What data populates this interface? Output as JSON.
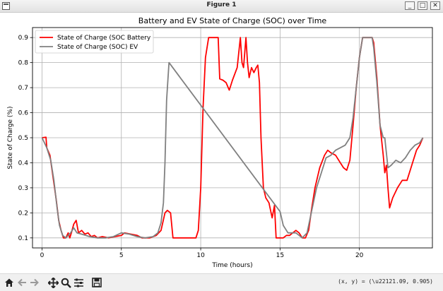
{
  "window": {
    "title": "Figure 1",
    "controls": {
      "minimize": "_",
      "maximize": "□",
      "close": "✕"
    }
  },
  "toolbar": {
    "icons": [
      "home-icon",
      "back-arrow-icon",
      "forward-arrow-icon",
      "pan-icon",
      "zoom-icon",
      "configure-subplots-icon",
      "save-icon"
    ],
    "coords_text": "(x, y) = (\\u22121.09, 0.905)"
  },
  "chart_data": {
    "type": "line",
    "title": "Battery and EV State of Charge (SOC) over Time",
    "xlabel": "Time (hours)",
    "ylabel": "State of Charge (%)",
    "xlim": [
      -0.6,
      24.6
    ],
    "ylim": [
      0.06,
      0.94
    ],
    "xticks": [
      0,
      5,
      10,
      15,
      20
    ],
    "yticks": [
      0.1,
      0.2,
      0.3,
      0.4,
      0.5,
      0.6,
      0.7,
      0.8,
      0.9
    ],
    "grid": true,
    "legend_position": "upper-left",
    "series": [
      {
        "name": "State of Charge (SOC Battery",
        "color": "#ff0000",
        "points": [
          [
            0,
            0.5
          ],
          [
            0.25,
            0.502
          ],
          [
            0.3,
            0.46
          ],
          [
            0.5,
            0.43
          ],
          [
            0.7,
            0.34
          ],
          [
            0.9,
            0.25
          ],
          [
            1.05,
            0.17
          ],
          [
            1.2,
            0.13
          ],
          [
            1.35,
            0.1
          ],
          [
            1.5,
            0.1
          ],
          [
            1.65,
            0.12
          ],
          [
            1.75,
            0.1
          ],
          [
            1.85,
            0.12
          ],
          [
            2.0,
            0.155
          ],
          [
            2.15,
            0.17
          ],
          [
            2.3,
            0.12
          ],
          [
            2.5,
            0.13
          ],
          [
            2.7,
            0.115
          ],
          [
            2.9,
            0.12
          ],
          [
            3.1,
            0.105
          ],
          [
            3.3,
            0.11
          ],
          [
            3.5,
            0.1
          ],
          [
            3.8,
            0.105
          ],
          [
            4.2,
            0.1
          ],
          [
            4.6,
            0.105
          ],
          [
            5.0,
            0.11
          ],
          [
            5.2,
            0.12
          ],
          [
            5.6,
            0.115
          ],
          [
            6.0,
            0.11
          ],
          [
            6.3,
            0.1
          ],
          [
            6.8,
            0.1
          ],
          [
            7.2,
            0.11
          ],
          [
            7.5,
            0.13
          ],
          [
            7.75,
            0.2
          ],
          [
            7.9,
            0.21
          ],
          [
            8.1,
            0.2
          ],
          [
            8.25,
            0.1
          ],
          [
            8.6,
            0.1
          ],
          [
            9.0,
            0.1
          ],
          [
            9.4,
            0.1
          ],
          [
            9.7,
            0.1
          ],
          [
            9.85,
            0.13
          ],
          [
            10.0,
            0.3
          ],
          [
            10.15,
            0.62
          ],
          [
            10.3,
            0.82
          ],
          [
            10.5,
            0.9
          ],
          [
            10.7,
            0.9
          ],
          [
            11.0,
            0.9
          ],
          [
            11.1,
            0.9
          ],
          [
            11.2,
            0.735
          ],
          [
            11.4,
            0.73
          ],
          [
            11.6,
            0.72
          ],
          [
            11.8,
            0.69
          ],
          [
            12.0,
            0.73
          ],
          [
            12.3,
            0.78
          ],
          [
            12.5,
            0.9
          ],
          [
            12.6,
            0.8
          ],
          [
            12.7,
            0.78
          ],
          [
            12.85,
            0.9
          ],
          [
            12.95,
            0.8
          ],
          [
            13.05,
            0.74
          ],
          [
            13.2,
            0.78
          ],
          [
            13.35,
            0.76
          ],
          [
            13.5,
            0.78
          ],
          [
            13.6,
            0.79
          ],
          [
            13.7,
            0.72
          ],
          [
            13.8,
            0.5
          ],
          [
            13.95,
            0.3
          ],
          [
            14.1,
            0.26
          ],
          [
            14.3,
            0.24
          ],
          [
            14.5,
            0.18
          ],
          [
            14.65,
            0.23
          ],
          [
            14.75,
            0.1
          ],
          [
            15.0,
            0.1
          ],
          [
            15.2,
            0.1
          ],
          [
            15.4,
            0.11
          ],
          [
            15.6,
            0.11
          ],
          [
            15.8,
            0.12
          ],
          [
            16.0,
            0.13
          ],
          [
            16.2,
            0.12
          ],
          [
            16.4,
            0.1
          ],
          [
            16.6,
            0.1
          ],
          [
            16.8,
            0.13
          ],
          [
            17.0,
            0.22
          ],
          [
            17.2,
            0.3
          ],
          [
            17.5,
            0.38
          ],
          [
            17.8,
            0.43
          ],
          [
            18.0,
            0.45
          ],
          [
            18.2,
            0.44
          ],
          [
            18.5,
            0.43
          ],
          [
            18.8,
            0.4
          ],
          [
            19.0,
            0.38
          ],
          [
            19.2,
            0.37
          ],
          [
            19.4,
            0.41
          ],
          [
            19.6,
            0.55
          ],
          [
            19.8,
            0.7
          ],
          [
            20.0,
            0.82
          ],
          [
            20.2,
            0.9
          ],
          [
            20.8,
            0.9
          ],
          [
            20.9,
            0.88
          ],
          [
            21.1,
            0.74
          ],
          [
            21.3,
            0.55
          ],
          [
            21.5,
            0.43
          ],
          [
            21.6,
            0.36
          ],
          [
            21.7,
            0.39
          ],
          [
            21.8,
            0.3
          ],
          [
            21.9,
            0.22
          ],
          [
            22.1,
            0.26
          ],
          [
            22.4,
            0.3
          ],
          [
            22.7,
            0.33
          ],
          [
            23.0,
            0.33
          ],
          [
            23.3,
            0.39
          ],
          [
            23.6,
            0.45
          ],
          [
            23.8,
            0.47
          ],
          [
            24.0,
            0.5
          ]
        ]
      },
      {
        "name": "State of Charge (SOC) EV",
        "color": "#808080",
        "points": [
          [
            0,
            0.5
          ],
          [
            0.3,
            0.46
          ],
          [
            0.55,
            0.41
          ],
          [
            0.75,
            0.33
          ],
          [
            0.95,
            0.22
          ],
          [
            1.1,
            0.15
          ],
          [
            1.3,
            0.11
          ],
          [
            1.5,
            0.1
          ],
          [
            1.8,
            0.12
          ],
          [
            2.0,
            0.14
          ],
          [
            2.2,
            0.12
          ],
          [
            2.5,
            0.115
          ],
          [
            3.0,
            0.105
          ],
          [
            3.5,
            0.1
          ],
          [
            4.0,
            0.1
          ],
          [
            4.5,
            0.105
          ],
          [
            5.0,
            0.12
          ],
          [
            5.5,
            0.115
          ],
          [
            6.0,
            0.105
          ],
          [
            6.5,
            0.1
          ],
          [
            7.0,
            0.105
          ],
          [
            7.3,
            0.12
          ],
          [
            7.5,
            0.16
          ],
          [
            7.65,
            0.24
          ],
          [
            7.75,
            0.4
          ],
          [
            7.85,
            0.65
          ],
          [
            8.0,
            0.8
          ],
          [
            15.0,
            0.205
          ],
          [
            15.2,
            0.15
          ],
          [
            15.5,
            0.12
          ],
          [
            16.0,
            0.12
          ],
          [
            16.4,
            0.1
          ],
          [
            16.7,
            0.12
          ],
          [
            17.0,
            0.21
          ],
          [
            17.3,
            0.3
          ],
          [
            17.6,
            0.36
          ],
          [
            17.9,
            0.42
          ],
          [
            18.2,
            0.43
          ],
          [
            18.5,
            0.45
          ],
          [
            18.8,
            0.46
          ],
          [
            19.1,
            0.47
          ],
          [
            19.4,
            0.5
          ],
          [
            19.6,
            0.58
          ],
          [
            19.8,
            0.7
          ],
          [
            20.0,
            0.82
          ],
          [
            20.2,
            0.9
          ],
          [
            20.8,
            0.9
          ],
          [
            20.9,
            0.86
          ],
          [
            21.1,
            0.72
          ],
          [
            21.3,
            0.55
          ],
          [
            21.5,
            0.5
          ],
          [
            21.6,
            0.5
          ],
          [
            21.8,
            0.38
          ],
          [
            22.0,
            0.39
          ],
          [
            22.3,
            0.41
          ],
          [
            22.6,
            0.4
          ],
          [
            22.9,
            0.42
          ],
          [
            23.2,
            0.45
          ],
          [
            23.5,
            0.47
          ],
          [
            23.8,
            0.48
          ],
          [
            24.0,
            0.5
          ]
        ]
      }
    ]
  }
}
